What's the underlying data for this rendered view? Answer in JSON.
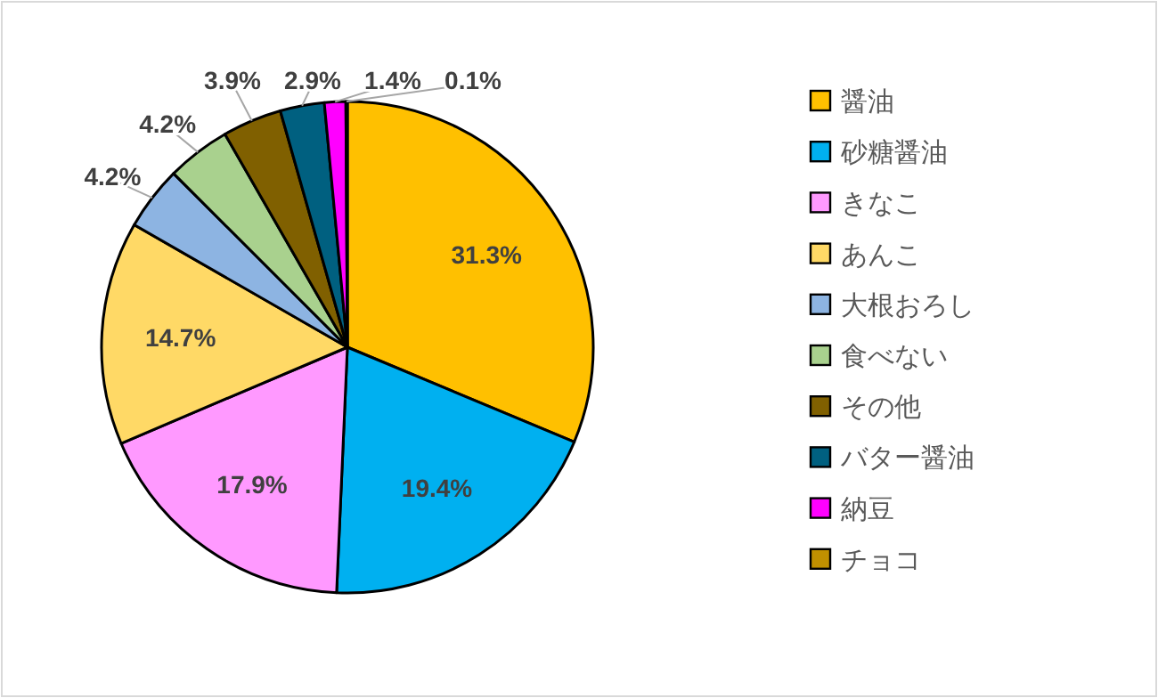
{
  "chart_data": {
    "type": "pie",
    "categories": [
      "醤油",
      "砂糖醤油",
      "きなこ",
      "あんこ",
      "大根おろし",
      "食べない",
      "その他",
      "バター醤油",
      "納豆",
      "チョコ"
    ],
    "values": [
      31.3,
      19.4,
      17.9,
      14.7,
      4.2,
      4.2,
      3.9,
      2.9,
      1.4,
      0.1
    ],
    "colors": [
      "#ffc000",
      "#00b0f0",
      "#ff99ff",
      "#ffd966",
      "#8db4e2",
      "#a9d18e",
      "#806000",
      "#006080",
      "#ff00ff",
      "#c09000"
    ],
    "value_labels": [
      "31.3%",
      "19.4%",
      "17.9%",
      "14.7%",
      "4.2%",
      "4.2%",
      "3.9%",
      "2.9%",
      "1.4%",
      "0.1%"
    ],
    "legend": "right"
  }
}
